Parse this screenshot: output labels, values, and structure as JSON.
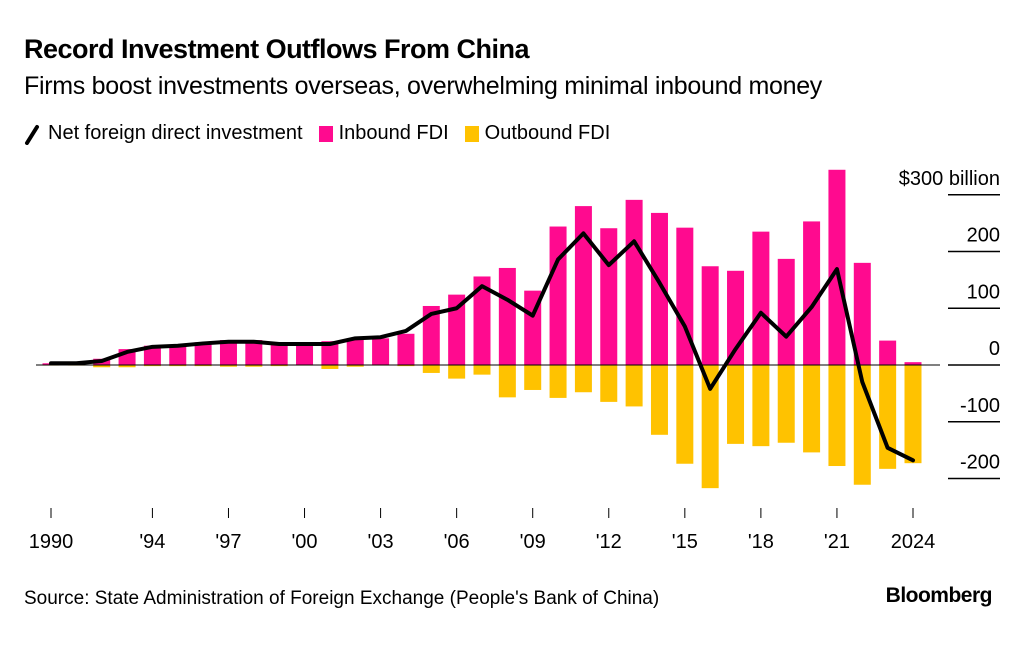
{
  "header": {
    "title": "Record Investment Outflows From China",
    "subtitle": "Firms boost investments overseas, overwhelming minimal inbound money"
  },
  "legend": {
    "net_label": "Net foreign direct investment",
    "inbound_label": "Inbound FDI",
    "outbound_label": "Outbound FDI"
  },
  "colors": {
    "inbound": "#ff0a8f",
    "outbound": "#ffc200",
    "net": "#000000"
  },
  "footer": {
    "source": "Source: State Administration of Foreign Exchange (People's Bank of China)",
    "brand": "Bloomberg"
  },
  "chart_data": {
    "type": "bar",
    "title": "Record Investment Outflows From China",
    "subtitle": "Firms boost investments overseas, overwhelming minimal inbound money",
    "xlabel": "",
    "ylabel": "$ billion",
    "ylim": [
      -250,
      330
    ],
    "y_ticks": [
      300,
      200,
      100,
      0,
      -100,
      -200
    ],
    "y_tick_labels": [
      "$300 billion",
      "200",
      "100",
      "0",
      "-100",
      "-200"
    ],
    "x_ticks": [
      1990,
      1994,
      1997,
      2000,
      2003,
      2006,
      2009,
      2012,
      2015,
      2018,
      2021,
      2024
    ],
    "x_tick_labels": [
      "1990",
      "'94",
      "'97",
      "'00",
      "'03",
      "'06",
      "'09",
      "'12",
      "'15",
      "'18",
      "'21",
      "2024"
    ],
    "legend_position": "top-left",
    "grid": false,
    "categories": [
      1990,
      1991,
      1992,
      1993,
      1994,
      1995,
      1996,
      1997,
      1998,
      1999,
      2000,
      2001,
      2002,
      2003,
      2004,
      2005,
      2006,
      2007,
      2008,
      2009,
      2010,
      2011,
      2012,
      2013,
      2014,
      2015,
      2016,
      2017,
      2018,
      2019,
      2020,
      2021,
      2022,
      2023,
      2024
    ],
    "series": [
      {
        "name": "Inbound FDI",
        "type": "bar",
        "values": [
          3,
          4,
          11,
          28,
          34,
          36,
          40,
          44,
          44,
          38,
          38,
          42,
          47,
          47,
          55,
          104,
          124,
          156,
          171,
          131,
          244,
          280,
          241,
          291,
          268,
          242,
          174,
          166,
          235,
          187,
          253,
          344,
          180,
          43,
          5
        ]
      },
      {
        "name": "Outbound FDI",
        "type": "bar",
        "values": [
          -1,
          -1,
          -4,
          -4,
          -2,
          -2,
          -2,
          -3,
          -3,
          -2,
          -1,
          -7,
          -3,
          -1,
          -2,
          -14,
          -24,
          -17,
          -57,
          -44,
          -58,
          -48,
          -65,
          -73,
          -123,
          -174,
          -217,
          -139,
          -143,
          -137,
          -154,
          -178,
          -211,
          -183,
          -173
        ]
      },
      {
        "name": "Net foreign direct investment",
        "type": "line",
        "values": [
          3,
          3,
          7,
          23,
          32,
          34,
          38,
          41,
          41,
          37,
          37,
          37,
          47,
          49,
          60,
          90,
          100,
          139,
          115,
          87,
          186,
          232,
          176,
          218,
          145,
          68,
          -42,
          28,
          92,
          50,
          102,
          169,
          -30,
          -146,
          -168
        ]
      }
    ]
  }
}
